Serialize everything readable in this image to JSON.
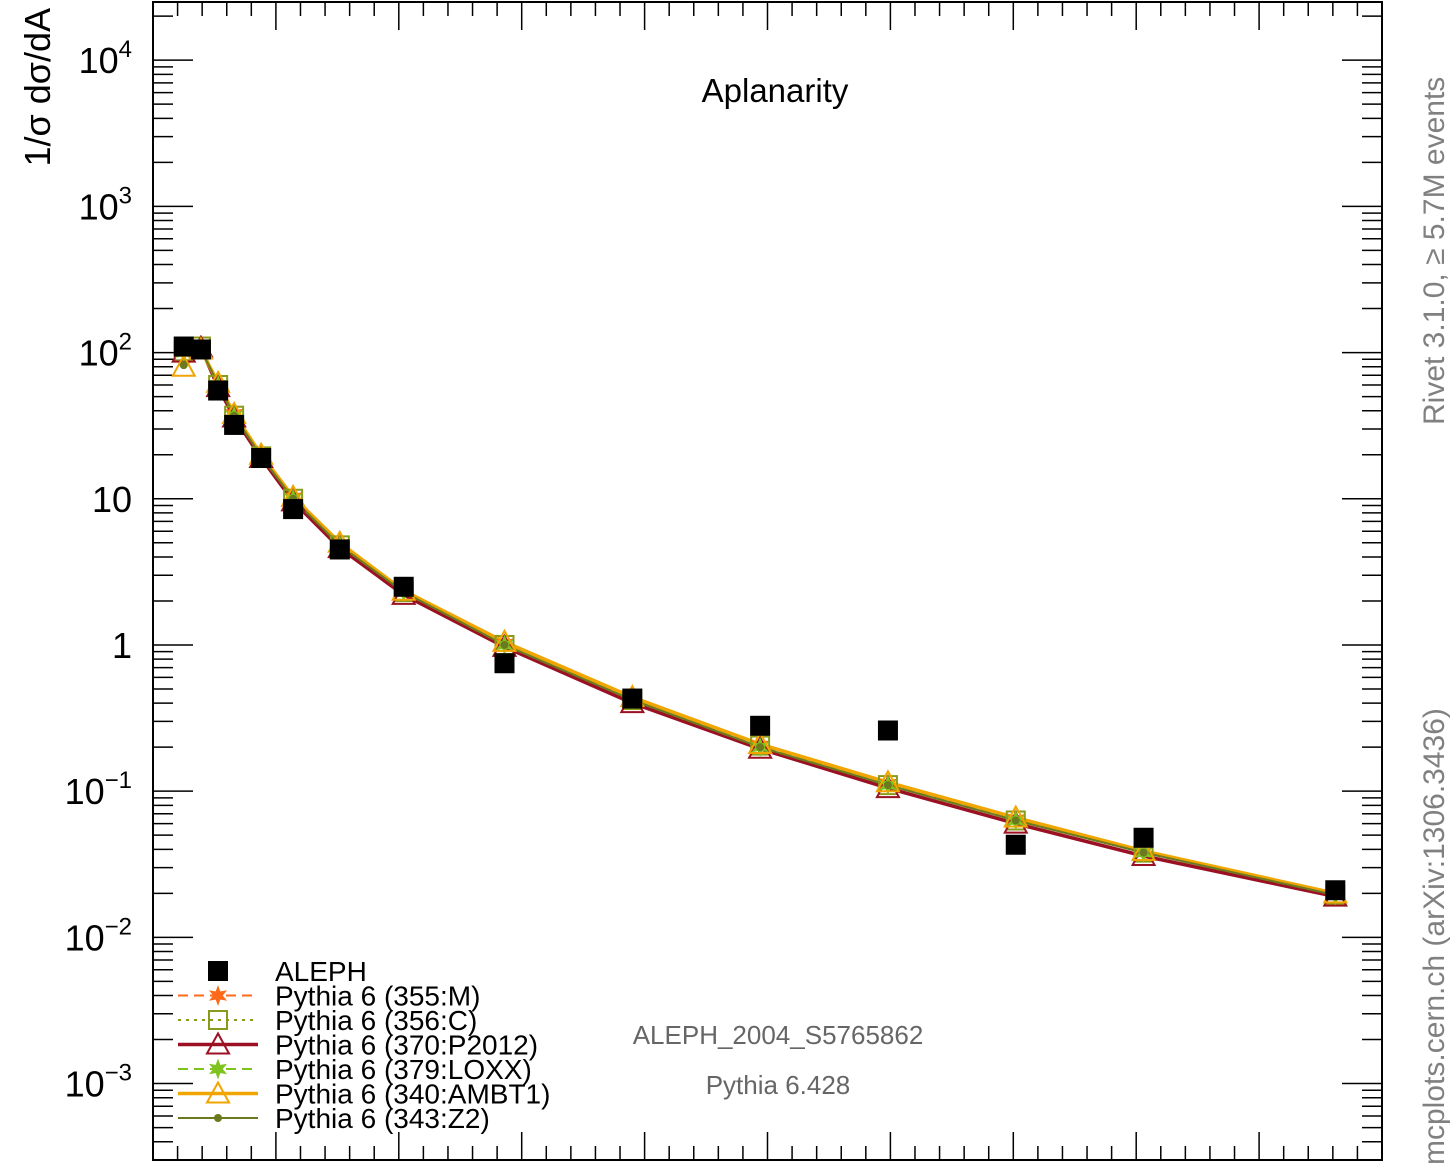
{
  "chart_data": {
    "type": "scatter",
    "title": "Aplanarity",
    "ylabel": "1/σ  dσ/dA",
    "xlabel": "",
    "yscale": "log",
    "ylim": [
      0.0003,
      25000
    ],
    "xlim": [
      0.0,
      0.05
    ],
    "yticks": [
      {
        "value": 0.001,
        "mant": "10",
        "exp": "−3"
      },
      {
        "value": 0.01,
        "mant": "10",
        "exp": "−2"
      },
      {
        "value": 0.1,
        "mant": "10",
        "exp": "−1"
      },
      {
        "value": 1,
        "mant": "1",
        "exp": ""
      },
      {
        "value": 10,
        "mant": "10",
        "exp": ""
      },
      {
        "value": 100,
        "mant": "10",
        "exp": "2"
      },
      {
        "value": 1000,
        "mant": "10",
        "exp": "3"
      },
      {
        "value": 10000,
        "mant": "10",
        "exp": "4"
      }
    ],
    "x": [
      0.00125,
      0.00195,
      0.00265,
      0.0033,
      0.0044,
      0.0057,
      0.0076,
      0.0102,
      0.0143,
      0.0195,
      0.0247,
      0.0299,
      0.0351,
      0.0403,
      0.0481
    ],
    "data": {
      "name": "ALEPH",
      "values": [
        110,
        105,
        55,
        32,
        19,
        8.5,
        4.5,
        2.5,
        0.75,
        0.43,
        0.28,
        0.26,
        0.043,
        0.048,
        0.021
      ]
    },
    "series": [
      {
        "name": "Pythia 6 (355:M)",
        "color": "#ff6a1a",
        "line": "dashed",
        "marker": "star",
        "values": [
          105,
          112,
          60,
          38,
          20,
          10.2,
          4.9,
          2.35,
          1.02,
          0.42,
          0.205,
          0.112,
          0.064,
          0.038,
          0.0195
        ]
      },
      {
        "name": "Pythia 6 (356:C)",
        "color": "#8a9a1a",
        "line": "dotted",
        "marker": "open-square",
        "values": [
          102,
          110,
          60,
          37,
          19.5,
          10.0,
          4.8,
          2.3,
          1.0,
          0.42,
          0.205,
          0.11,
          0.063,
          0.038,
          0.0195
        ]
      },
      {
        "name": "Pythia 6 (370:P2012)",
        "color": "#9b1022",
        "line": "solid",
        "marker": "open-triangle",
        "values": [
          100,
          108,
          58,
          36,
          19,
          9.6,
          4.6,
          2.2,
          0.97,
          0.4,
          0.195,
          0.105,
          0.06,
          0.036,
          0.019
        ]
      },
      {
        "name": "Pythia 6 (379:LOXX)",
        "color": "#7fc31f",
        "line": "dashed",
        "marker": "star",
        "values": [
          100,
          110,
          60,
          37,
          19.5,
          10.0,
          4.8,
          2.3,
          1.0,
          0.42,
          0.2,
          0.11,
          0.063,
          0.038,
          0.0195
        ]
      },
      {
        "name": "Pythia 6 (340:AMBT1)",
        "color": "#f0a500",
        "line": "solid",
        "marker": "open-triangle",
        "values": [
          80,
          105,
          62,
          38,
          20,
          10.3,
          5.0,
          2.35,
          1.05,
          0.44,
          0.21,
          0.115,
          0.066,
          0.039,
          0.02
        ]
      },
      {
        "name": "Pythia 6 (343:Z2)",
        "color": "#6b7a1e",
        "line": "solid",
        "marker": "dot",
        "values": [
          82,
          105,
          61,
          37,
          19.5,
          10.0,
          4.8,
          2.3,
          1.0,
          0.42,
          0.2,
          0.11,
          0.063,
          0.038,
          0.0195
        ]
      }
    ],
    "legend_position": "bottom-left",
    "annotations": [
      "ALEPH_2004_S5765862",
      "Pythia 6.428"
    ],
    "grid": false
  },
  "side_notes": {
    "top": "Rivet 3.1.0, ≥ 5.7M events",
    "bottom": "mcplots.cern.ch (arXiv:1306.3436)"
  }
}
